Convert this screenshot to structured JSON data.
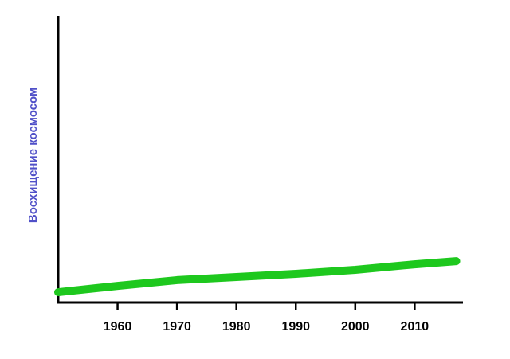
{
  "chart_data": {
    "type": "line",
    "ylabel": "Восхищение космосом",
    "x": [
      1950,
      1960,
      1970,
      1980,
      1990,
      2000,
      2010,
      2017
    ],
    "series": [
      {
        "name": "Восхищение космосом",
        "color": "#1ec81e",
        "values": [
          3.6,
          5.8,
          7.8,
          8.9,
          10,
          11.4,
          13.3,
          14.4
        ]
      }
    ],
    "xlim": [
      1950,
      2018
    ],
    "xticks": [
      1960,
      1970,
      1980,
      1990,
      2000,
      2010
    ],
    "ylim": [
      0,
      100
    ],
    "grid": false
  }
}
